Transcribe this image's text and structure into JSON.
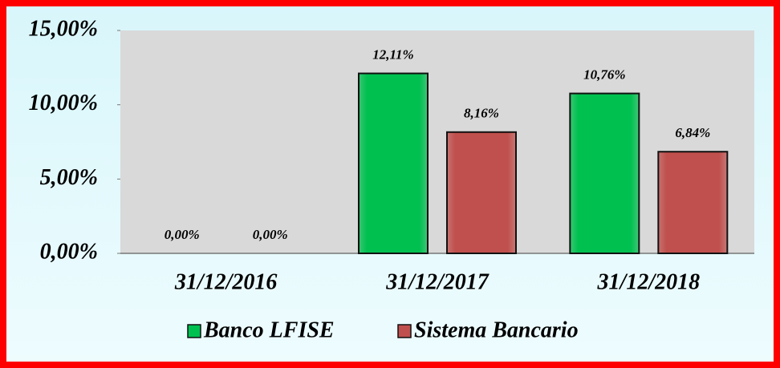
{
  "chart_data": {
    "type": "bar",
    "categories": [
      "31/12/2016",
      "31/12/2017",
      "31/12/2018"
    ],
    "series": [
      {
        "name": "Banco LFISE",
        "color": "#00c050",
        "values": [
          0,
          12.11,
          10.76
        ],
        "value_labels": [
          "0,00%",
          "12,11%",
          "10,76%"
        ]
      },
      {
        "name": "Sistema Bancario",
        "color": "#c0504d",
        "values": [
          0,
          8.16,
          6.84
        ],
        "value_labels": [
          "0,00%",
          "8,16%",
          "6,84%"
        ]
      }
    ],
    "ylim": [
      0,
      15
    ],
    "yticks": [
      {
        "value": 0,
        "label": "0,00%"
      },
      {
        "value": 5,
        "label": "5,00%"
      },
      {
        "value": 10,
        "label": "10,00%"
      },
      {
        "value": 15,
        "label": "15,00%"
      }
    ],
    "grid": false,
    "legend": "bottom"
  }
}
